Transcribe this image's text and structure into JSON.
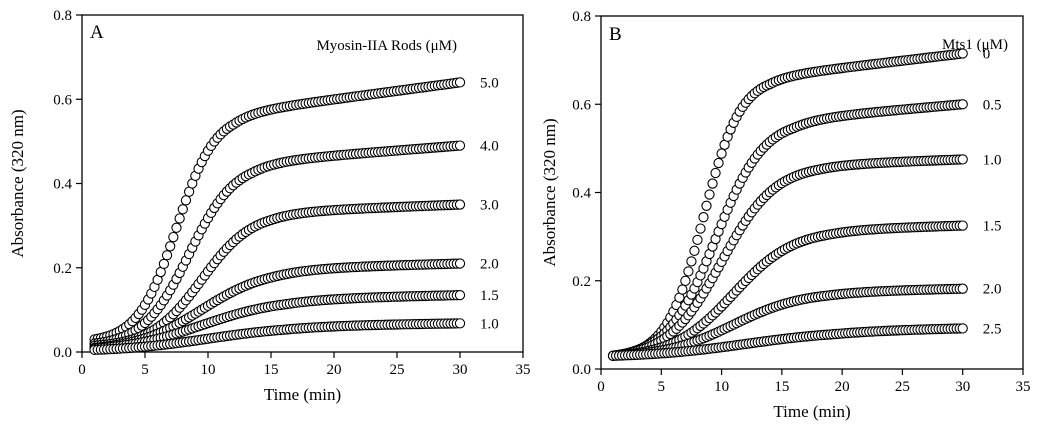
{
  "chart_data": [
    {
      "type": "scatter",
      "panel_label": "A",
      "xlabel": "Time (min)",
      "ylabel": "Absorbance (320 nm)",
      "xlim": [
        0,
        35
      ],
      "ylim": [
        0,
        0.8
      ],
      "xticks": [
        "0",
        "5",
        "10",
        "15",
        "20",
        "25",
        "30",
        "35"
      ],
      "yticks": [
        "0.0",
        "0.2",
        "0.4",
        "0.6",
        "0.8"
      ],
      "legend_title": "Myosin-IIA Rods (μM)",
      "series": [
        {
          "name": "5.0",
          "start": 0.03,
          "end": 0.64,
          "midpoint": 7.5,
          "steepness": 0.65,
          "knee": 12,
          "plateau_slope": 0.0045
        },
        {
          "name": "4.0",
          "start": 0.02,
          "end": 0.49,
          "midpoint": 8.5,
          "steepness": 0.55,
          "knee": 13.5,
          "plateau_slope": 0.0025
        },
        {
          "name": "3.0",
          "start": 0.015,
          "end": 0.35,
          "midpoint": 9.5,
          "steepness": 0.5,
          "knee": 15,
          "plateau_slope": 0.0012
        },
        {
          "name": "2.0",
          "start": 0.01,
          "end": 0.21,
          "midpoint": 9.5,
          "steepness": 0.38,
          "knee": 15,
          "plateau_slope": 0.0008
        },
        {
          "name": "1.5",
          "start": 0.008,
          "end": 0.135,
          "midpoint": 9.5,
          "steepness": 0.32,
          "knee": 16,
          "plateau_slope": 0.0006
        },
        {
          "name": "1.0",
          "start": 0.005,
          "end": 0.068,
          "midpoint": 10,
          "steepness": 0.28,
          "knee": 16,
          "plateau_slope": 0.0004
        }
      ]
    },
    {
      "type": "scatter",
      "panel_label": "B",
      "xlabel": "Time (min)",
      "ylabel": "Absorbance (320 nm)",
      "xlim": [
        0,
        35
      ],
      "ylim": [
        0,
        0.8
      ],
      "xticks": [
        "0",
        "5",
        "10",
        "15",
        "20",
        "25",
        "30",
        "35"
      ],
      "yticks": [
        "0.0",
        "0.2",
        "0.4",
        "0.6",
        "0.8"
      ],
      "legend_title": "Mts1 (μM)",
      "series": [
        {
          "name": "0",
          "start": 0.03,
          "end": 0.715,
          "midpoint": 8.5,
          "steepness": 0.65,
          "knee": 14,
          "plateau_slope": 0.0035
        },
        {
          "name": "0.5",
          "start": 0.03,
          "end": 0.6,
          "midpoint": 9.5,
          "steepness": 0.5,
          "knee": 16,
          "plateau_slope": 0.0025
        },
        {
          "name": "1.0",
          "start": 0.03,
          "end": 0.475,
          "midpoint": 10,
          "steepness": 0.45,
          "knee": 18,
          "plateau_slope": 0.001
        },
        {
          "name": "1.5",
          "start": 0.03,
          "end": 0.325,
          "midpoint": 11,
          "steepness": 0.4,
          "knee": 19,
          "plateau_slope": 0.0008
        },
        {
          "name": "2.0",
          "start": 0.03,
          "end": 0.182,
          "midpoint": 11,
          "steepness": 0.35,
          "knee": 19,
          "plateau_slope": 0.0006
        },
        {
          "name": "2.5",
          "start": 0.03,
          "end": 0.092,
          "midpoint": 12,
          "steepness": 0.25,
          "knee": 19,
          "plateau_slope": 0.0005
        }
      ]
    }
  ]
}
